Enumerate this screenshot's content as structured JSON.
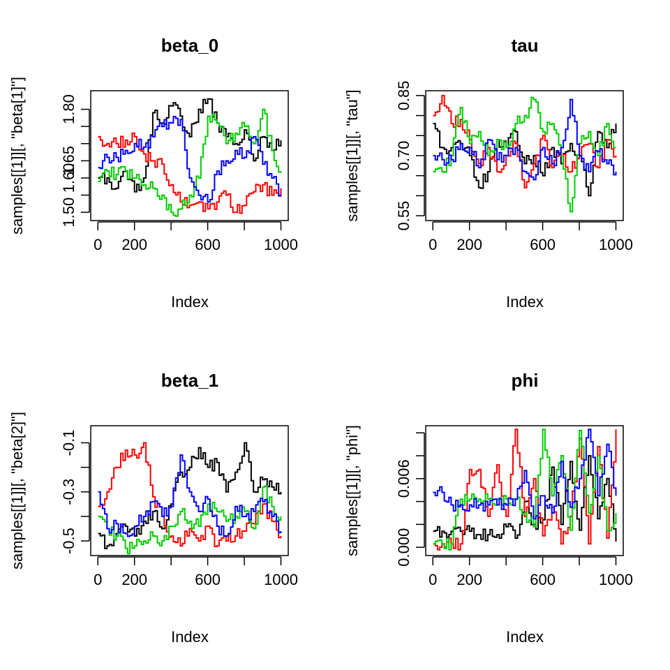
{
  "chart_data": [
    {
      "type": "line",
      "title": "beta_0",
      "xlabel": "Index",
      "ylabel": "samples[[1]][, \"beta[1]\"]",
      "xlim": [
        1,
        1000
      ],
      "ylim": [
        1.49,
        1.84
      ],
      "xticks": [
        0,
        200,
        400,
        600,
        800,
        1000
      ],
      "xtick_labels": [
        "0",
        "200",
        "",
        "600",
        "",
        "1000"
      ],
      "yticks": [
        1.5,
        1.55,
        1.6,
        1.65,
        1.7,
        1.75,
        1.8
      ],
      "ytick_labels": [
        "1.50",
        "",
        "1.60",
        "1.65",
        "",
        "",
        "1.80"
      ],
      "series": [
        {
          "color": "#000000",
          "x": [
            1,
            50,
            100,
            150,
            200,
            250,
            300,
            350,
            400,
            450,
            500,
            550,
            600,
            650,
            700,
            750,
            800,
            850,
            900,
            950,
            1000
          ],
          "y": [
            1.6,
            1.6,
            1.57,
            1.62,
            1.56,
            1.6,
            1.79,
            1.76,
            1.81,
            1.78,
            1.72,
            1.8,
            1.83,
            1.76,
            1.72,
            1.7,
            1.74,
            1.65,
            1.72,
            1.68,
            1.71
          ]
        },
        {
          "color": "#ff0000",
          "x": [
            1,
            50,
            100,
            150,
            200,
            250,
            300,
            350,
            400,
            450,
            500,
            550,
            600,
            650,
            700,
            750,
            800,
            850,
            900,
            950,
            1000
          ],
          "y": [
            1.72,
            1.7,
            1.7,
            1.71,
            1.72,
            1.67,
            1.65,
            1.64,
            1.58,
            1.53,
            1.52,
            1.53,
            1.51,
            1.53,
            1.55,
            1.5,
            1.52,
            1.56,
            1.58,
            1.55,
            1.57
          ]
        },
        {
          "color": "#00cc00",
          "x": [
            1,
            50,
            100,
            150,
            200,
            250,
            300,
            350,
            400,
            450,
            500,
            550,
            600,
            650,
            700,
            750,
            800,
            850,
            900,
            950,
            1000
          ],
          "y": [
            1.59,
            1.62,
            1.61,
            1.62,
            1.6,
            1.58,
            1.57,
            1.55,
            1.5,
            1.51,
            1.55,
            1.6,
            1.78,
            1.76,
            1.7,
            1.73,
            1.75,
            1.7,
            1.8,
            1.68,
            1.62
          ]
        },
        {
          "color": "#0000ff",
          "x": [
            1,
            50,
            100,
            150,
            200,
            250,
            300,
            350,
            400,
            450,
            500,
            550,
            600,
            650,
            700,
            750,
            800,
            850,
            900,
            950,
            1000
          ],
          "y": [
            1.63,
            1.66,
            1.66,
            1.68,
            1.7,
            1.69,
            1.72,
            1.75,
            1.76,
            1.77,
            1.6,
            1.55,
            1.53,
            1.62,
            1.65,
            1.68,
            1.66,
            1.72,
            1.64,
            1.6,
            1.55
          ]
        }
      ]
    },
    {
      "type": "line",
      "title": "tau",
      "xlabel": "Index",
      "ylabel": "samples[[1]][, \"tau\"]",
      "xlim": [
        1,
        1000
      ],
      "ylim": [
        0.55,
        0.85
      ],
      "xticks": [
        0,
        200,
        400,
        600,
        800,
        1000
      ],
      "xtick_labels": [
        "0",
        "200",
        "",
        "600",
        "",
        "1000"
      ],
      "yticks": [
        0.55,
        0.6,
        0.65,
        0.7,
        0.75,
        0.8,
        0.85
      ],
      "ytick_labels": [
        "0.55",
        "",
        "",
        "0.70",
        "",
        "",
        "0.85"
      ],
      "series": [
        {
          "color": "#000000",
          "x": [
            1,
            50,
            100,
            150,
            200,
            250,
            300,
            350,
            400,
            450,
            500,
            550,
            600,
            650,
            700,
            750,
            800,
            850,
            900,
            950,
            1000
          ],
          "y": [
            0.78,
            0.72,
            0.72,
            0.73,
            0.7,
            0.62,
            0.66,
            0.74,
            0.72,
            0.76,
            0.68,
            0.7,
            0.65,
            0.72,
            0.68,
            0.73,
            0.7,
            0.6,
            0.76,
            0.72,
            0.78
          ]
        },
        {
          "color": "#ff0000",
          "x": [
            1,
            50,
            100,
            150,
            200,
            250,
            300,
            350,
            400,
            450,
            500,
            550,
            600,
            650,
            700,
            750,
            800,
            850,
            900,
            950,
            1000
          ],
          "y": [
            0.8,
            0.85,
            0.78,
            0.79,
            0.74,
            0.68,
            0.72,
            0.66,
            0.7,
            0.73,
            0.62,
            0.68,
            0.75,
            0.67,
            0.7,
            0.66,
            0.7,
            0.73,
            0.67,
            0.74,
            0.7
          ]
        },
        {
          "color": "#00cc00",
          "x": [
            1,
            50,
            100,
            150,
            200,
            250,
            300,
            350,
            400,
            450,
            500,
            550,
            600,
            650,
            700,
            750,
            800,
            850,
            900,
            950,
            1000
          ],
          "y": [
            0.66,
            0.66,
            0.7,
            0.82,
            0.73,
            0.76,
            0.7,
            0.74,
            0.72,
            0.78,
            0.8,
            0.84,
            0.76,
            0.78,
            0.7,
            0.56,
            0.73,
            0.76,
            0.7,
            0.78,
            0.72
          ]
        },
        {
          "color": "#0000ff",
          "x": [
            1,
            50,
            100,
            150,
            200,
            250,
            300,
            350,
            400,
            450,
            500,
            550,
            600,
            650,
            700,
            750,
            800,
            850,
            900,
            950,
            1000
          ],
          "y": [
            0.7,
            0.69,
            0.69,
            0.73,
            0.72,
            0.67,
            0.74,
            0.69,
            0.7,
            0.72,
            0.66,
            0.64,
            0.72,
            0.68,
            0.72,
            0.84,
            0.7,
            0.66,
            0.71,
            0.68,
            0.66
          ]
        }
      ]
    },
    {
      "type": "line",
      "title": "beta_1",
      "xlabel": "Index",
      "ylabel": "samples[[1]][, \"beta[2]\"]",
      "xlim": [
        1,
        1000
      ],
      "ylim": [
        -0.54,
        -0.05
      ],
      "xticks": [
        0,
        200,
        400,
        600,
        800,
        1000
      ],
      "xtick_labels": [
        "0",
        "200",
        "",
        "600",
        "",
        "1000"
      ],
      "yticks": [
        -0.5,
        -0.4,
        -0.3,
        -0.2,
        -0.1
      ],
      "ytick_labels": [
        "-0.5",
        "",
        "-0.3",
        "",
        "-0.1"
      ],
      "series": [
        {
          "color": "#000000",
          "x": [
            1,
            50,
            100,
            150,
            200,
            250,
            300,
            350,
            400,
            450,
            500,
            550,
            600,
            650,
            700,
            750,
            800,
            850,
            900,
            950,
            1000
          ],
          "y": [
            -0.47,
            -0.52,
            -0.47,
            -0.44,
            -0.48,
            -0.42,
            -0.38,
            -0.45,
            -0.35,
            -0.22,
            -0.2,
            -0.12,
            -0.2,
            -0.18,
            -0.3,
            -0.22,
            -0.1,
            -0.3,
            -0.25,
            -0.28,
            -0.3
          ]
        },
        {
          "color": "#ff0000",
          "x": [
            1,
            50,
            100,
            150,
            200,
            250,
            300,
            350,
            400,
            450,
            500,
            550,
            600,
            650,
            700,
            750,
            800,
            850,
            900,
            950,
            1000
          ],
          "y": [
            -0.36,
            -0.3,
            -0.2,
            -0.13,
            -0.15,
            -0.1,
            -0.32,
            -0.4,
            -0.48,
            -0.52,
            -0.45,
            -0.5,
            -0.44,
            -0.52,
            -0.5,
            -0.48,
            -0.46,
            -0.43,
            -0.35,
            -0.42,
            -0.48
          ]
        },
        {
          "color": "#00cc00",
          "x": [
            1,
            50,
            100,
            150,
            200,
            250,
            300,
            350,
            400,
            450,
            500,
            550,
            600,
            650,
            700,
            750,
            800,
            850,
            900,
            950,
            1000
          ],
          "y": [
            -0.4,
            -0.45,
            -0.48,
            -0.53,
            -0.52,
            -0.5,
            -0.48,
            -0.5,
            -0.44,
            -0.38,
            -0.42,
            -0.44,
            -0.35,
            -0.38,
            -0.42,
            -0.4,
            -0.38,
            -0.45,
            -0.28,
            -0.36,
            -0.4
          ]
        },
        {
          "color": "#0000ff",
          "x": [
            1,
            50,
            100,
            150,
            200,
            250,
            300,
            350,
            400,
            450,
            500,
            550,
            600,
            650,
            700,
            750,
            800,
            850,
            900,
            950,
            1000
          ],
          "y": [
            -0.3,
            -0.45,
            -0.43,
            -0.47,
            -0.44,
            -0.4,
            -0.34,
            -0.4,
            -0.36,
            -0.15,
            -0.3,
            -0.38,
            -0.33,
            -0.44,
            -0.48,
            -0.36,
            -0.4,
            -0.38,
            -0.34,
            -0.4,
            -0.46
          ]
        }
      ]
    },
    {
      "type": "line",
      "title": "phi",
      "xlabel": "Index",
      "ylabel": "samples[[1]][, \"phi\"]",
      "xlim": [
        1,
        1000
      ],
      "ylim": [
        -0.0003,
        0.0102
      ],
      "xticks": [
        0,
        200,
        400,
        600,
        800,
        1000
      ],
      "xtick_labels": [
        "0",
        "200",
        "",
        "600",
        "",
        "1000"
      ],
      "yticks": [
        0.0,
        0.002,
        0.004,
        0.006,
        0.008,
        0.01
      ],
      "ytick_labels": [
        "0.000",
        "",
        "",
        "0.006",
        "",
        ""
      ],
      "series": [
        {
          "color": "#000000",
          "x": [
            1,
            50,
            100,
            150,
            200,
            250,
            300,
            350,
            400,
            450,
            500,
            550,
            600,
            650,
            700,
            750,
            800,
            850,
            900,
            950,
            1000
          ],
          "y": [
            0.0014,
            0.0014,
            0.0014,
            0.0014,
            0.0014,
            0.0011,
            0.0011,
            0.0011,
            0.0018,
            0.0008,
            0.004,
            0.002,
            0.0024,
            0.007,
            0.002,
            0.0075,
            0.0015,
            0.008,
            0.0025,
            0.006,
            0.0005
          ]
        },
        {
          "color": "#ff0000",
          "x": [
            1,
            50,
            100,
            150,
            200,
            250,
            300,
            350,
            400,
            450,
            500,
            550,
            600,
            650,
            700,
            750,
            800,
            850,
            900,
            950,
            1000
          ],
          "y": [
            0.0003,
            0.0003,
            0.0003,
            0.0003,
            0.0068,
            0.0068,
            0.0027,
            0.0072,
            0.0027,
            0.0103,
            0.0027,
            0.006,
            0.001,
            0.0035,
            0.0003,
            0.0027,
            0.0095,
            0.0003,
            0.0088,
            0.0008,
            0.0103
          ]
        },
        {
          "color": "#00cc00",
          "x": [
            1,
            50,
            100,
            150,
            200,
            250,
            300,
            350,
            400,
            450,
            500,
            550,
            600,
            650,
            700,
            750,
            800,
            850,
            900,
            950,
            1000
          ],
          "y": [
            0.0003,
            0.0003,
            0.0003,
            0.0042,
            0.0042,
            0.0042,
            0.0042,
            0.0042,
            0.0042,
            0.0042,
            0.003,
            0.0018,
            0.0103,
            0.0045,
            0.008,
            0.0015,
            0.0102,
            0.003,
            0.008,
            0.0015,
            0.003
          ]
        },
        {
          "color": "#0000ff",
          "x": [
            1,
            50,
            100,
            150,
            200,
            250,
            300,
            350,
            400,
            450,
            500,
            550,
            600,
            650,
            700,
            750,
            800,
            850,
            900,
            950,
            1000
          ],
          "y": [
            0.0048,
            0.0048,
            0.0037,
            0.0037,
            0.0037,
            0.0037,
            0.0037,
            0.0037,
            0.0037,
            0.0042,
            0.0067,
            0.0025,
            0.0045,
            0.003,
            0.0075,
            0.0035,
            0.006,
            0.0103,
            0.0045,
            0.009,
            0.0045
          ]
        }
      ]
    }
  ]
}
